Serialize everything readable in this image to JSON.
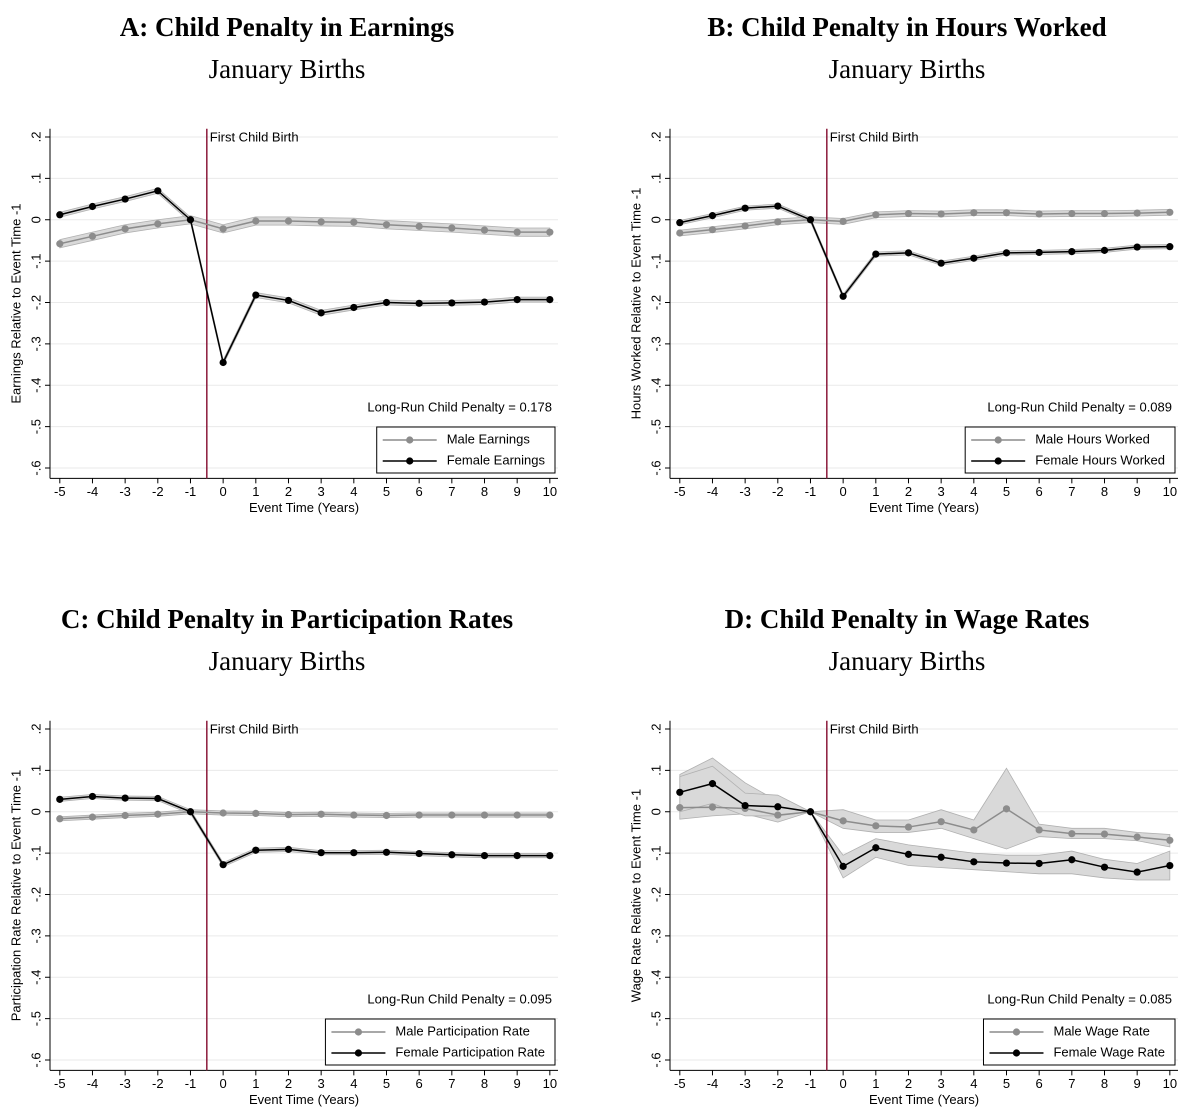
{
  "chart_data": [
    {
      "type": "line",
      "title": "A: Child Penalty in Earnings",
      "subtitle": "January Births",
      "y_label": "Earnings Relative to Event Time -1",
      "x_label": "Event Time (Years)",
      "event_line": -0.5,
      "event_label": "First Child Birth",
      "annotation": "Long-Run Child Penalty = 0.178",
      "x": [
        -5,
        -4,
        -3,
        -2,
        -1,
        0,
        1,
        2,
        3,
        4,
        5,
        6,
        7,
        8,
        9,
        10
      ],
      "series": [
        {
          "name": "Male Earnings",
          "color": "#8c8c8c",
          "ci": 0.01,
          "values": [
            -0.058,
            -0.04,
            -0.022,
            -0.01,
            0,
            -0.022,
            -0.003,
            -0.003,
            -0.005,
            -0.006,
            -0.012,
            -0.016,
            -0.02,
            -0.025,
            -0.03,
            -0.03
          ]
        },
        {
          "name": "Female Earnings",
          "color": "#000000",
          "ci": 0.006,
          "values": [
            0.012,
            0.032,
            0.05,
            0.07,
            0,
            -0.345,
            -0.182,
            -0.195,
            -0.225,
            -0.212,
            -0.2,
            -0.202,
            -0.201,
            -0.199,
            -0.193,
            -0.193
          ]
        }
      ],
      "xlim": [
        -5.3,
        10.25
      ],
      "xticks": [
        -5,
        -4,
        -3,
        -2,
        -1,
        0,
        1,
        2,
        3,
        4,
        5,
        6,
        7,
        8,
        9,
        10
      ],
      "ylim": [
        -0.625,
        0.22
      ],
      "yticks": [
        {
          "value": -0.6,
          "label": "-.6"
        },
        {
          "value": -0.5,
          "label": "-.5"
        },
        {
          "value": -0.4,
          "label": "-.4"
        },
        {
          "value": -0.3,
          "label": "-.3"
        },
        {
          "value": -0.2,
          "label": "-.2"
        },
        {
          "value": -0.1,
          "label": "-.1"
        },
        0,
        {
          "value": 0.1,
          "label": ".1"
        },
        {
          "value": 0.2,
          "label": ".2"
        }
      ],
      "grid": true
    },
    {
      "type": "line",
      "title": "B: Child Penalty in Hours Worked",
      "subtitle": "January Births",
      "y_label": "Hours Worked Relative to Event Time -1",
      "x_label": "Event Time (Years)",
      "event_line": -0.5,
      "event_label": "First Child Birth",
      "annotation": "Long-Run Child Penalty = 0.089",
      "x": [
        -5,
        -4,
        -3,
        -2,
        -1,
        0,
        1,
        2,
        3,
        4,
        5,
        6,
        7,
        8,
        9,
        10
      ],
      "series": [
        {
          "name": "Male Hours Worked",
          "color": "#8c8c8c",
          "ci": 0.007,
          "values": [
            -0.032,
            -0.024,
            -0.015,
            -0.005,
            0,
            -0.004,
            0.012,
            0.015,
            0.014,
            0.017,
            0.017,
            0.014,
            0.015,
            0.015,
            0.016,
            0.018
          ]
        },
        {
          "name": "Female Hours Worked",
          "color": "#000000",
          "ci": 0.005,
          "values": [
            -0.007,
            0.01,
            0.028,
            0.033,
            0,
            -0.185,
            -0.083,
            -0.08,
            -0.105,
            -0.093,
            -0.08,
            -0.079,
            -0.077,
            -0.074,
            -0.066,
            -0.065
          ]
        }
      ],
      "xlim": [
        -5.3,
        10.25
      ],
      "xticks": [
        -5,
        -4,
        -3,
        -2,
        -1,
        0,
        1,
        2,
        3,
        4,
        5,
        6,
        7,
        8,
        9,
        10
      ],
      "ylim": [
        -0.625,
        0.22
      ],
      "yticks": [
        {
          "value": -0.6,
          "label": "-.6"
        },
        {
          "value": -0.5,
          "label": "-.5"
        },
        {
          "value": -0.4,
          "label": "-.4"
        },
        {
          "value": -0.3,
          "label": "-.3"
        },
        {
          "value": -0.2,
          "label": "-.2"
        },
        {
          "value": -0.1,
          "label": "-.1"
        },
        0,
        {
          "value": 0.1,
          "label": ".1"
        },
        {
          "value": 0.2,
          "label": ".2"
        }
      ],
      "grid": true
    },
    {
      "type": "line",
      "title": "C: Child Penalty in Participation Rates",
      "subtitle": "January Births",
      "y_label": "Participation Rate Relative to Event Time -1",
      "x_label": "Event Time (Years)",
      "event_line": -0.5,
      "event_label": "First Child Birth",
      "annotation": "Long-Run Child Penalty = 0.095",
      "x": [
        -5,
        -4,
        -3,
        -2,
        -1,
        0,
        1,
        2,
        3,
        4,
        5,
        6,
        7,
        8,
        9,
        10
      ],
      "series": [
        {
          "name": "Male Participation Rate",
          "color": "#8c8c8c",
          "ci": 0.005,
          "values": [
            -0.017,
            -0.013,
            -0.009,
            -0.006,
            0,
            -0.003,
            -0.004,
            -0.007,
            -0.006,
            -0.008,
            -0.009,
            -0.008,
            -0.008,
            -0.008,
            -0.008,
            -0.008
          ]
        },
        {
          "name": "Female Participation Rate",
          "color": "#000000",
          "ci": 0.005,
          "values": [
            0.03,
            0.037,
            0.033,
            0.032,
            0,
            -0.128,
            -0.093,
            -0.091,
            -0.099,
            -0.099,
            -0.098,
            -0.101,
            -0.104,
            -0.106,
            -0.106,
            -0.106
          ]
        }
      ],
      "xlim": [
        -5.3,
        10.25
      ],
      "xticks": [
        -5,
        -4,
        -3,
        -2,
        -1,
        0,
        1,
        2,
        3,
        4,
        5,
        6,
        7,
        8,
        9,
        10
      ],
      "ylim": [
        -0.625,
        0.22
      ],
      "yticks": [
        {
          "value": -0.6,
          "label": "-.6"
        },
        {
          "value": -0.5,
          "label": "-.5"
        },
        {
          "value": -0.4,
          "label": "-.4"
        },
        {
          "value": -0.3,
          "label": "-.3"
        },
        {
          "value": -0.2,
          "label": "-.2"
        },
        {
          "value": -0.1,
          "label": "-.1"
        },
        0,
        {
          "value": 0.1,
          "label": ".1"
        },
        {
          "value": 0.2,
          "label": ".2"
        }
      ],
      "grid": true
    },
    {
      "type": "line",
      "title": "D: Child Penalty in Wage Rates",
      "subtitle": "January Births",
      "y_label": "Wage Rate Relative to Event Time -1",
      "x_label": "Event Time (Years)",
      "event_line": -0.5,
      "event_label": "First Child Birth",
      "annotation": "Long-Run Child Penalty = 0.085",
      "x": [
        -5,
        -4,
        -3,
        -2,
        -1,
        0,
        1,
        2,
        3,
        4,
        5,
        6,
        7,
        8,
        9,
        10
      ],
      "series": [
        {
          "name": "Male Wage Rate",
          "color": "#8c8c8c",
          "values": [
            0.01,
            0.011,
            0.008,
            -0.008,
            0,
            -0.022,
            -0.034,
            -0.037,
            -0.024,
            -0.044,
            0.007,
            -0.044,
            -0.053,
            -0.054,
            -0.061,
            -0.069
          ],
          "lower": [
            -0.018,
            -0.01,
            -0.005,
            -0.025,
            0,
            -0.04,
            -0.05,
            -0.05,
            -0.04,
            -0.065,
            -0.09,
            -0.06,
            -0.065,
            -0.065,
            -0.07,
            -0.085
          ],
          "upper": [
            0.09,
            0.13,
            0.07,
            0.025,
            0,
            0.005,
            -0.02,
            -0.02,
            0.005,
            -0.02,
            0.105,
            -0.03,
            -0.04,
            -0.04,
            -0.05,
            -0.055
          ]
        },
        {
          "name": "Female Wage Rate",
          "color": "#000000",
          "values": [
            0.047,
            0.068,
            0.015,
            0.012,
            0,
            -0.132,
            -0.087,
            -0.103,
            -0.11,
            -0.121,
            -0.124,
            -0.125,
            -0.116,
            -0.134,
            -0.146,
            -0.13
          ],
          "lower": [
            0.0,
            0.02,
            -0.01,
            -0.01,
            0,
            -0.16,
            -0.11,
            -0.13,
            -0.135,
            -0.14,
            -0.145,
            -0.15,
            -0.15,
            -0.16,
            -0.165,
            -0.165
          ],
          "upper": [
            0.085,
            0.11,
            0.045,
            0.04,
            0,
            -0.105,
            -0.065,
            -0.08,
            -0.09,
            -0.1,
            -0.105,
            -0.105,
            -0.095,
            -0.115,
            -0.125,
            -0.095
          ]
        }
      ],
      "xlim": [
        -5.3,
        10.25
      ],
      "xticks": [
        -5,
        -4,
        -3,
        -2,
        -1,
        0,
        1,
        2,
        3,
        4,
        5,
        6,
        7,
        8,
        9,
        10
      ],
      "ylim": [
        -0.625,
        0.22
      ],
      "yticks": [
        {
          "value": -0.6,
          "label": "-.6"
        },
        {
          "value": -0.5,
          "label": "-.5"
        },
        {
          "value": -0.4,
          "label": "-.4"
        },
        {
          "value": -0.3,
          "label": "-.3"
        },
        {
          "value": -0.2,
          "label": "-.2"
        },
        {
          "value": -0.1,
          "label": "-.1"
        },
        0,
        {
          "value": 0.1,
          "label": ".1"
        },
        {
          "value": 0.2,
          "label": ".2"
        }
      ],
      "grid": true
    }
  ]
}
